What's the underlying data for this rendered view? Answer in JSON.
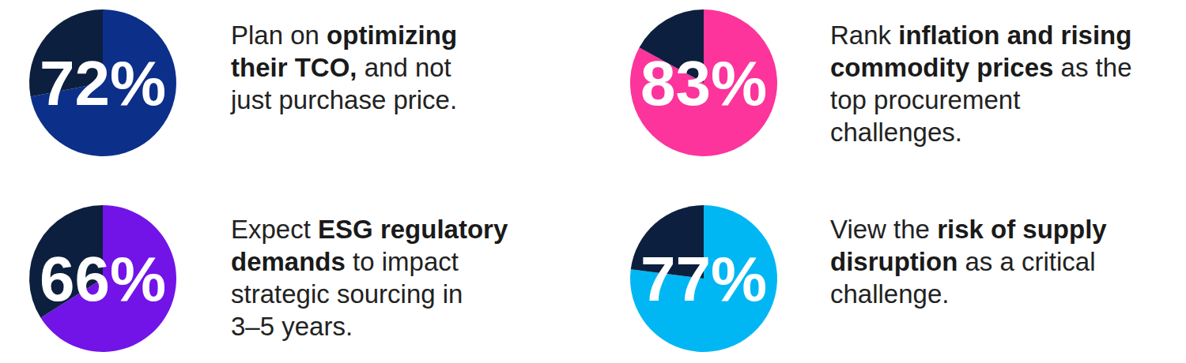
{
  "chart_data": [
    {
      "type": "pie",
      "values": [
        72
      ],
      "value_labels": [
        "72%"
      ],
      "color": "#0c2f8a",
      "ylim": [
        0,
        100
      ],
      "data_labels": true,
      "annotations": [
        "Plan on ",
        "optimizing\ntheir TCO,",
        " and not\njust purchase price."
      ]
    },
    {
      "type": "pie",
      "values": [
        83
      ],
      "value_labels": [
        "83%"
      ],
      "color": "#fc349c",
      "ylim": [
        0,
        100
      ],
      "data_labels": true,
      "annotations": [
        "Rank ",
        "inflation and rising\ncommodity prices",
        " as the\ntop procurement\nchallenges."
      ]
    },
    {
      "type": "pie",
      "values": [
        66
      ],
      "value_labels": [
        "66%"
      ],
      "color": "#7214e8",
      "ylim": [
        0,
        100
      ],
      "data_labels": true,
      "annotations": [
        "Expect ",
        "ESG regulatory\ndemands",
        " to impact\nstrategic sourcing in\n3–5 years."
      ]
    },
    {
      "type": "pie",
      "values": [
        77
      ],
      "value_labels": [
        "77%"
      ],
      "color": "#00b7f3",
      "ylim": [
        0,
        100
      ],
      "data_labels": true,
      "annotations": [
        "View the ",
        "risk of supply\ndisruption",
        " as a critical\nchallenge."
      ]
    }
  ]
}
